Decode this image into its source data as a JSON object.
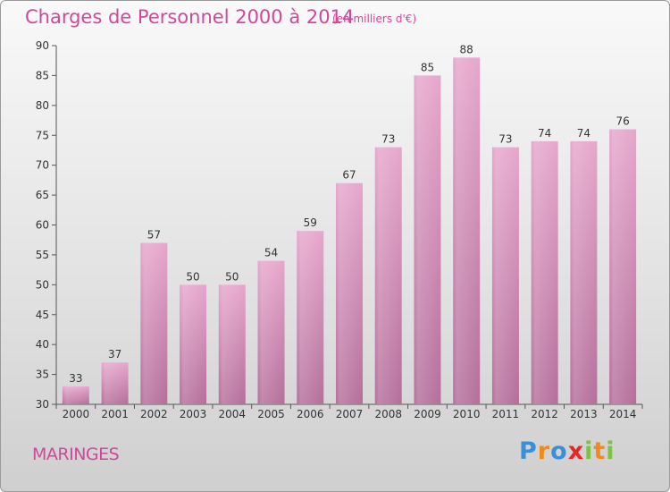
{
  "header": {
    "title": "Charges de Personnel 2000 à 2014",
    "subtitle": "(en milliers d'€)"
  },
  "footer": {
    "commune": "MARINGES",
    "logo": [
      "P",
      "r",
      "o",
      "x",
      "i",
      "t",
      "i"
    ],
    "logo_colors": [
      "#3b8fd6",
      "#f08a1c",
      "#3b8fd6",
      "#e8262a",
      "#7cc243",
      "#f08a1c",
      "#7cc243"
    ]
  },
  "chart_data": {
    "type": "bar",
    "categories": [
      "2000",
      "2001",
      "2002",
      "2003",
      "2004",
      "2005",
      "2006",
      "2007",
      "2008",
      "2009",
      "2010",
      "2011",
      "2012",
      "2013",
      "2014"
    ],
    "values": [
      33,
      37,
      57,
      50,
      50,
      54,
      59,
      67,
      73,
      85,
      88,
      73,
      74,
      74,
      76
    ],
    "value_labels": [
      "33",
      "37",
      "57",
      "50",
      "50",
      "54",
      "59",
      "67",
      "73",
      "85",
      "88",
      "73",
      "74",
      "74",
      "76"
    ],
    "yticks": [
      "30",
      "35",
      "40",
      "45",
      "50",
      "55",
      "60",
      "65",
      "70",
      "75",
      "80",
      "85",
      "90"
    ],
    "ylim": [
      30,
      90
    ],
    "title": "Charges de Personnel 2000 à 2014",
    "xlabel": "",
    "ylabel": "",
    "grid": false,
    "bar_color_top": "#e6a6cc",
    "bar_color_bottom": "#b46e9a"
  }
}
